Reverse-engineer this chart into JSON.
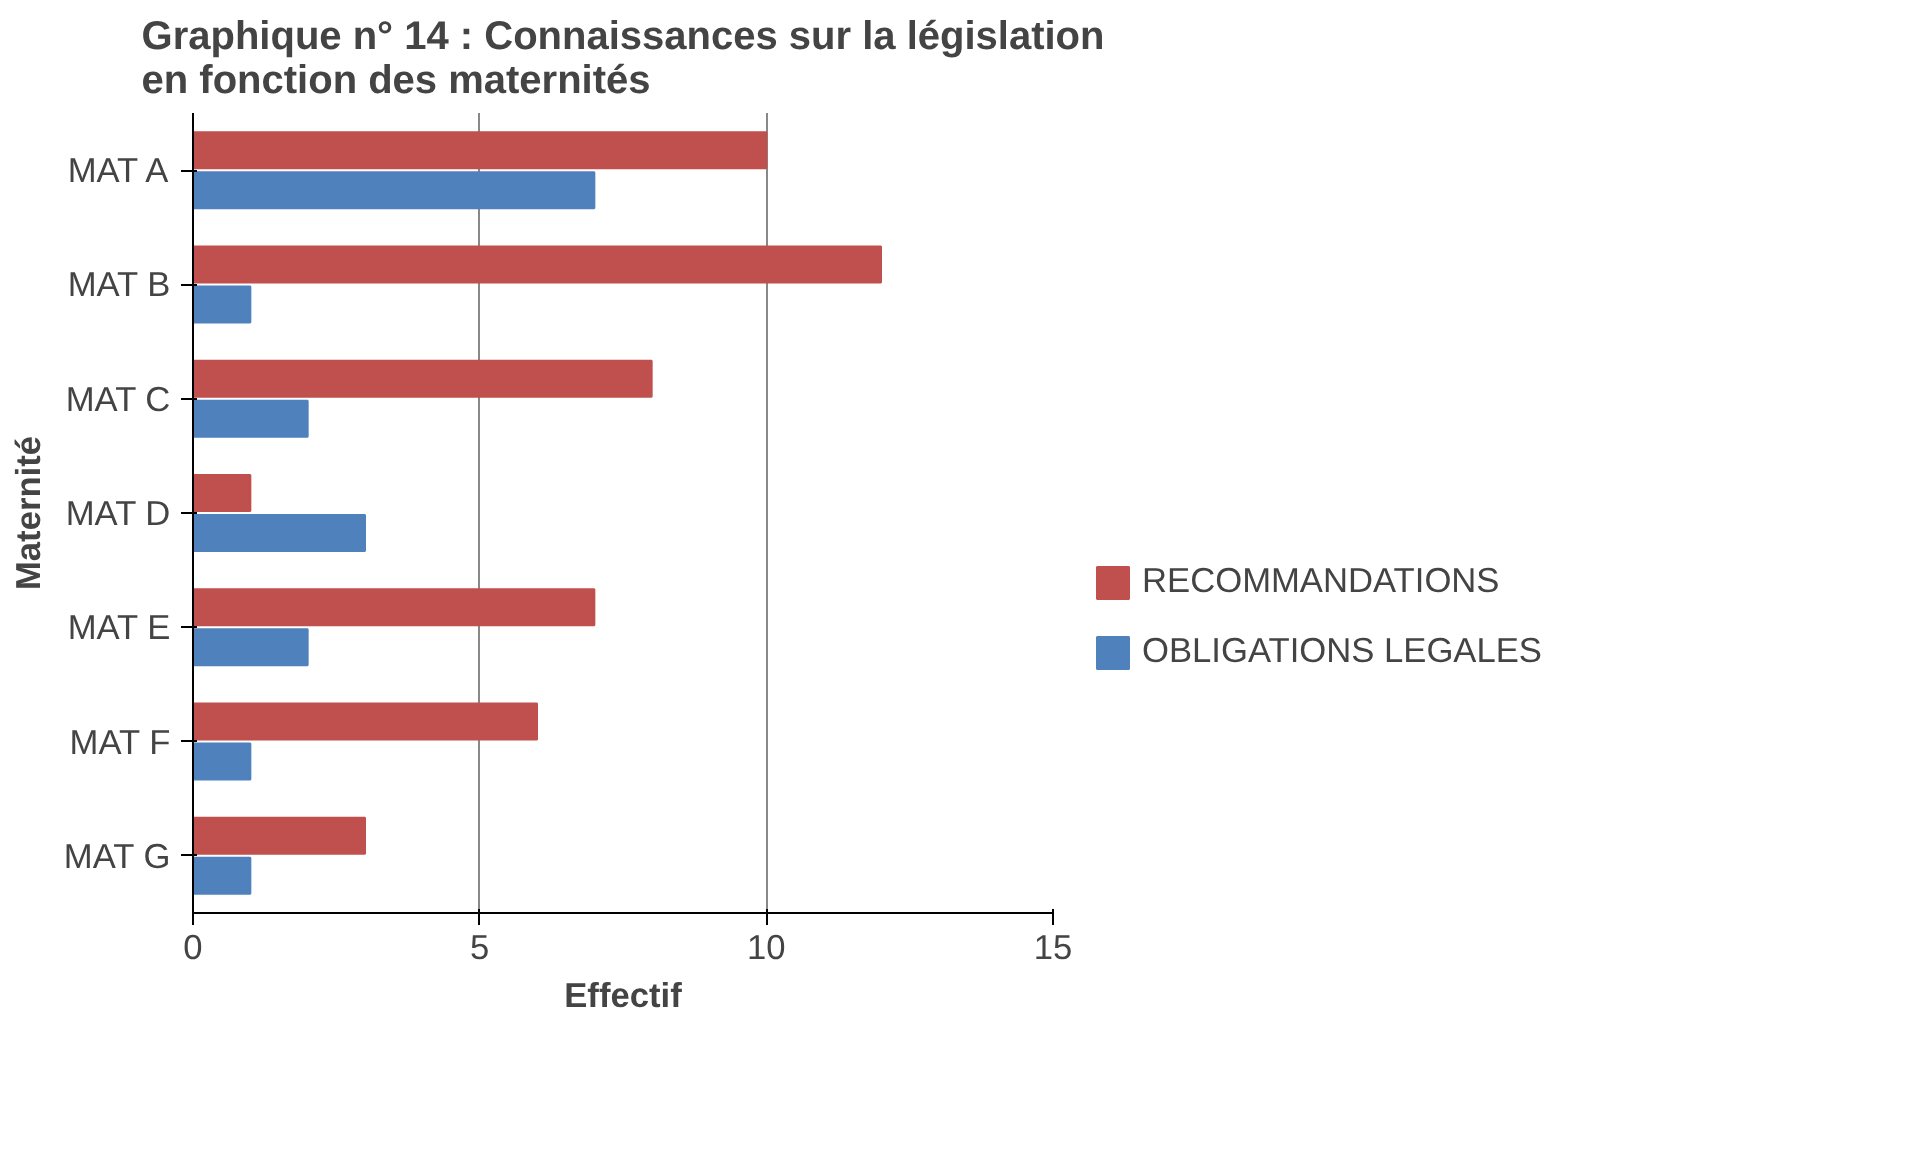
{
  "chart_data": {
    "type": "bar",
    "orientation": "horizontal",
    "title": "Graphique n° 14 : Connaissances sur la législation en fonction des maternités",
    "xlabel": "Effectif",
    "ylabel": "Maternité",
    "categories": [
      "MAT A",
      "MAT B",
      "MAT C",
      "MAT D",
      "MAT E",
      "MAT F",
      "MAT G"
    ],
    "series": [
      {
        "name": "RECOMMANDATIONS",
        "color": "#c0504d",
        "values": [
          10,
          12,
          8,
          1,
          7,
          6,
          3
        ]
      },
      {
        "name": "OBLIGATIONS LEGALES",
        "color": "#4f81bd",
        "values": [
          7,
          1,
          2,
          3,
          2,
          1,
          1
        ]
      }
    ],
    "xlim": [
      0,
      15
    ],
    "xticks": [
      0,
      5,
      10,
      15
    ],
    "grid": "x",
    "legend": "right"
  }
}
